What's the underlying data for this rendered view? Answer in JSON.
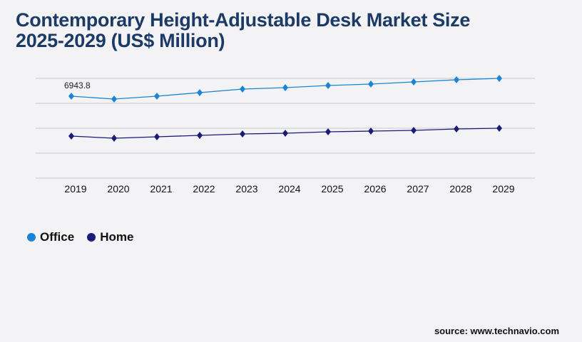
{
  "title_line1": "Contemporary Height-Adjustable Desk Market Size",
  "title_line2": "2025-2029 (US$ Million)",
  "source": "source: www.technavio.com",
  "chart_data": {
    "type": "line",
    "categories": [
      "2019",
      "2020",
      "2021",
      "2022",
      "2023",
      "2024",
      "2025",
      "2026",
      "2027",
      "2028",
      "2029"
    ],
    "series": [
      {
        "name": "Office",
        "color": "#1a85d6",
        "values": [
          6943.8,
          6702,
          6944,
          7246,
          7548,
          7669,
          7850,
          7971,
          8152,
          8333,
          8454
        ]
      },
      {
        "name": "Home",
        "color": "#1a1a7a",
        "values": [
          3563,
          3382,
          3502,
          3623,
          3744,
          3804,
          3925,
          3985,
          4046,
          4167,
          4227
        ]
      }
    ],
    "data_labels": [
      {
        "series": "Office",
        "category": "2019",
        "text": "6943.8"
      }
    ],
    "ylim": [
      0,
      8454
    ],
    "grid": true,
    "legend": "bottom-left"
  }
}
